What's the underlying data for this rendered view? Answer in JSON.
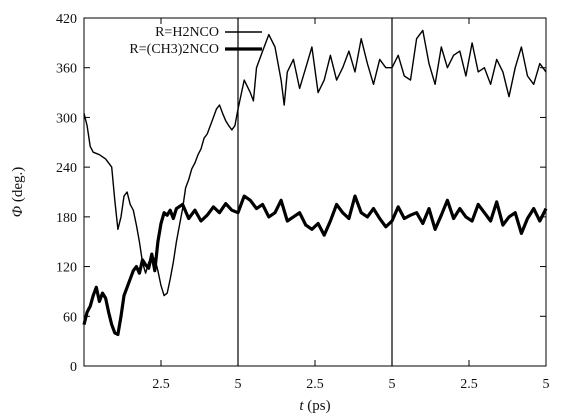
{
  "chart_data": {
    "type": "line",
    "xlabel": "t (ps)",
    "xlabel_var": "t",
    "xlabel_unit": " (ps)",
    "ylabel": "Φ (deg.)",
    "ylabel_var": "Φ",
    "ylabel_unit": " (deg.)",
    "xlim": [
      0,
      15
    ],
    "ylim": [
      0,
      420
    ],
    "yticks": [
      0,
      60,
      120,
      180,
      240,
      300,
      360,
      420
    ],
    "xticks": [
      {
        "value": 2.5,
        "label": "2.5"
      },
      {
        "value": 5,
        "label": "5"
      },
      {
        "value": 7.5,
        "label": "2.5"
      },
      {
        "value": 10,
        "label": "5"
      },
      {
        "value": 12.5,
        "label": "2.5"
      },
      {
        "value": 15,
        "label": "5"
      }
    ],
    "segment_boundaries": [
      5,
      10
    ],
    "grid": false,
    "legend_position": "top-left",
    "series": [
      {
        "name": "R=H2NCO",
        "color": "#000000",
        "style": "thin",
        "x": [
          0,
          0.1,
          0.2,
          0.3,
          0.5,
          0.7,
          0.9,
          1.0,
          1.1,
          1.2,
          1.3,
          1.4,
          1.5,
          1.6,
          1.7,
          1.8,
          1.9,
          2.0,
          2.1,
          2.2,
          2.3,
          2.4,
          2.5,
          2.6,
          2.7,
          2.8,
          2.9,
          3.0,
          3.1,
          3.2,
          3.3,
          3.4,
          3.5,
          3.6,
          3.7,
          3.8,
          3.9,
          4.0,
          4.1,
          4.2,
          4.3,
          4.4,
          4.5,
          4.6,
          4.7,
          4.8,
          4.9,
          5.0,
          5.2,
          5.4,
          5.5,
          5.6,
          5.8,
          6.0,
          6.2,
          6.4,
          6.5,
          6.6,
          6.8,
          7.0,
          7.2,
          7.4,
          7.6,
          7.8,
          8.0,
          8.2,
          8.4,
          8.6,
          8.8,
          9.0,
          9.2,
          9.4,
          9.6,
          9.8,
          10.0,
          10.2,
          10.4,
          10.6,
          10.8,
          11.0,
          11.2,
          11.4,
          11.6,
          11.8,
          12.0,
          12.2,
          12.4,
          12.6,
          12.8,
          13.0,
          13.2,
          13.4,
          13.6,
          13.8,
          14.0,
          14.2,
          14.4,
          14.6,
          14.8,
          15.0
        ],
        "values": [
          305,
          290,
          265,
          258,
          255,
          250,
          240,
          200,
          165,
          180,
          205,
          210,
          195,
          188,
          170,
          150,
          125,
          112,
          125,
          130,
          130,
          115,
          97,
          85,
          88,
          105,
          125,
          150,
          170,
          190,
          215,
          225,
          238,
          245,
          255,
          262,
          275,
          280,
          290,
          300,
          310,
          315,
          305,
          296,
          290,
          285,
          290,
          310,
          345,
          330,
          320,
          360,
          380,
          400,
          385,
          345,
          315,
          355,
          370,
          335,
          360,
          385,
          330,
          345,
          375,
          345,
          360,
          380,
          355,
          395,
          365,
          340,
          370,
          360,
          360,
          375,
          350,
          345,
          395,
          405,
          365,
          340,
          385,
          360,
          375,
          380,
          350,
          390,
          355,
          360,
          340,
          370,
          355,
          325,
          360,
          385,
          350,
          340,
          365,
          355
        ]
      },
      {
        "name": "R=(CH3)2NCO",
        "color": "#000000",
        "style": "thick",
        "x": [
          0,
          0.1,
          0.2,
          0.3,
          0.4,
          0.5,
          0.6,
          0.7,
          0.8,
          0.9,
          1.0,
          1.1,
          1.2,
          1.3,
          1.4,
          1.5,
          1.6,
          1.7,
          1.8,
          1.9,
          2.0,
          2.1,
          2.2,
          2.3,
          2.4,
          2.5,
          2.6,
          2.7,
          2.8,
          2.9,
          3.0,
          3.2,
          3.4,
          3.6,
          3.8,
          4.0,
          4.2,
          4.4,
          4.6,
          4.8,
          5.0,
          5.2,
          5.4,
          5.6,
          5.8,
          6.0,
          6.2,
          6.4,
          6.6,
          6.8,
          7.0,
          7.2,
          7.4,
          7.6,
          7.8,
          8.0,
          8.2,
          8.4,
          8.6,
          8.8,
          9.0,
          9.2,
          9.4,
          9.6,
          9.8,
          10.0,
          10.2,
          10.4,
          10.6,
          10.8,
          11.0,
          11.2,
          11.4,
          11.6,
          11.8,
          12.0,
          12.2,
          12.4,
          12.6,
          12.8,
          13.0,
          13.2,
          13.4,
          13.6,
          13.8,
          14.0,
          14.2,
          14.4,
          14.6,
          14.8,
          15.0
        ],
        "values": [
          50,
          65,
          72,
          85,
          95,
          78,
          88,
          82,
          65,
          50,
          40,
          38,
          60,
          85,
          95,
          105,
          115,
          120,
          112,
          128,
          122,
          118,
          135,
          115,
          150,
          172,
          185,
          182,
          188,
          178,
          190,
          195,
          178,
          188,
          175,
          182,
          192,
          185,
          196,
          188,
          185,
          205,
          200,
          190,
          195,
          180,
          185,
          200,
          175,
          180,
          185,
          170,
          165,
          172,
          158,
          175,
          195,
          185,
          178,
          205,
          185,
          180,
          190,
          178,
          168,
          175,
          192,
          178,
          182,
          185,
          172,
          190,
          165,
          182,
          200,
          178,
          190,
          180,
          175,
          195,
          185,
          175,
          198,
          170,
          180,
          185,
          160,
          178,
          190,
          175,
          190
        ]
      }
    ]
  }
}
